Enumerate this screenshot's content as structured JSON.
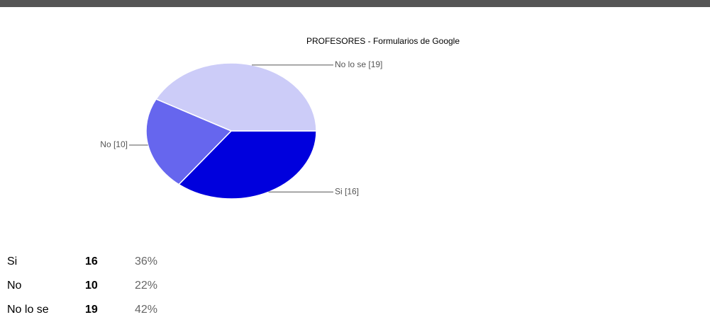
{
  "chart_data": {
    "type": "pie",
    "title": "PROFESORES - Formularios de Google",
    "categories": [
      "Si",
      "No",
      "No lo se"
    ],
    "values": [
      16,
      10,
      19
    ],
    "value_labels": [
      "Si [16]",
      "No [10]",
      "No lo se [19]"
    ],
    "colors": [
      "#0000dd",
      "#6666ee",
      "#ccccf8"
    ]
  },
  "table": {
    "rows": [
      {
        "label": "Si",
        "count": 16,
        "percent": "36%"
      },
      {
        "label": "No",
        "count": 10,
        "percent": "22%"
      },
      {
        "label": "No lo se",
        "count": 19,
        "percent": "42%"
      }
    ]
  }
}
